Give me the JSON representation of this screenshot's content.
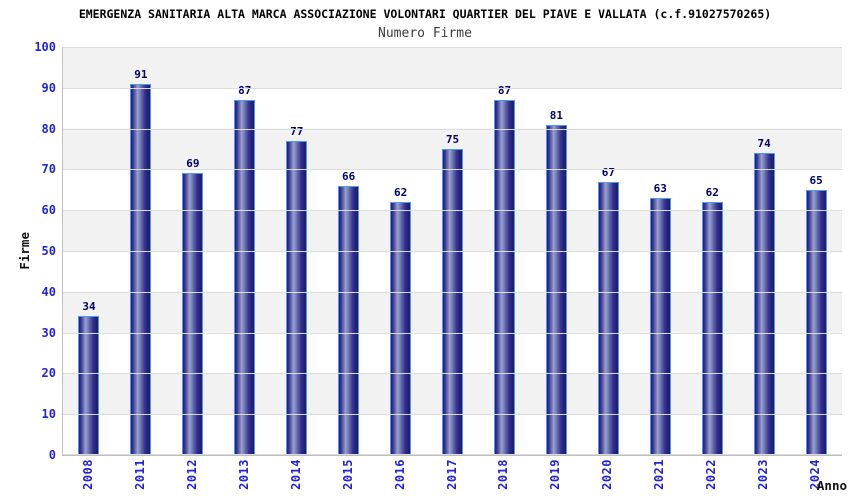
{
  "chart_data": {
    "type": "bar",
    "title": "EMERGENZA SANITARIA ALTA MARCA ASSOCIAZIONE VOLONTARI QUARTIER DEL PIAVE E VALLATA (c.f.91027570265)",
    "subtitle": "Numero Firme",
    "xlabel": "Anno",
    "ylabel": "Firme",
    "categories": [
      "2008",
      "2011",
      "2012",
      "2013",
      "2014",
      "2015",
      "2016",
      "2017",
      "2018",
      "2019",
      "2020",
      "2021",
      "2022",
      "2023",
      "2024"
    ],
    "values": [
      34,
      91,
      69,
      87,
      77,
      66,
      62,
      75,
      87,
      81,
      67,
      63,
      62,
      74,
      65
    ],
    "ylim": [
      0,
      100
    ],
    "ytick_step": 10,
    "yticks": [
      0,
      10,
      20,
      30,
      40,
      50,
      60,
      70,
      80,
      90,
      100
    ],
    "grid": true,
    "legend": "none",
    "background_bands": "alternating gray/white per 10 units, gray on 90-100, 70-80, 50-60, 30-40, 10-20"
  },
  "colors": {
    "title_color": "#000000",
    "subtitle_color": "#3c3c3c",
    "tick_label_color": "#2424cc",
    "value_label_color": "#000066",
    "axis_title_color": "#111111",
    "axis_line_color": "#bfbfbf",
    "gridline_color": "#dcdcdc",
    "band_gray": "#f2f2f2",
    "band_white": "#ffffff",
    "bar_border": "#4d9bf0",
    "bar_gradient": [
      "#1d1d7a",
      "#3c3c92",
      "#9ca1d0",
      "#6b70b0",
      "#30308a",
      "#191970"
    ]
  }
}
